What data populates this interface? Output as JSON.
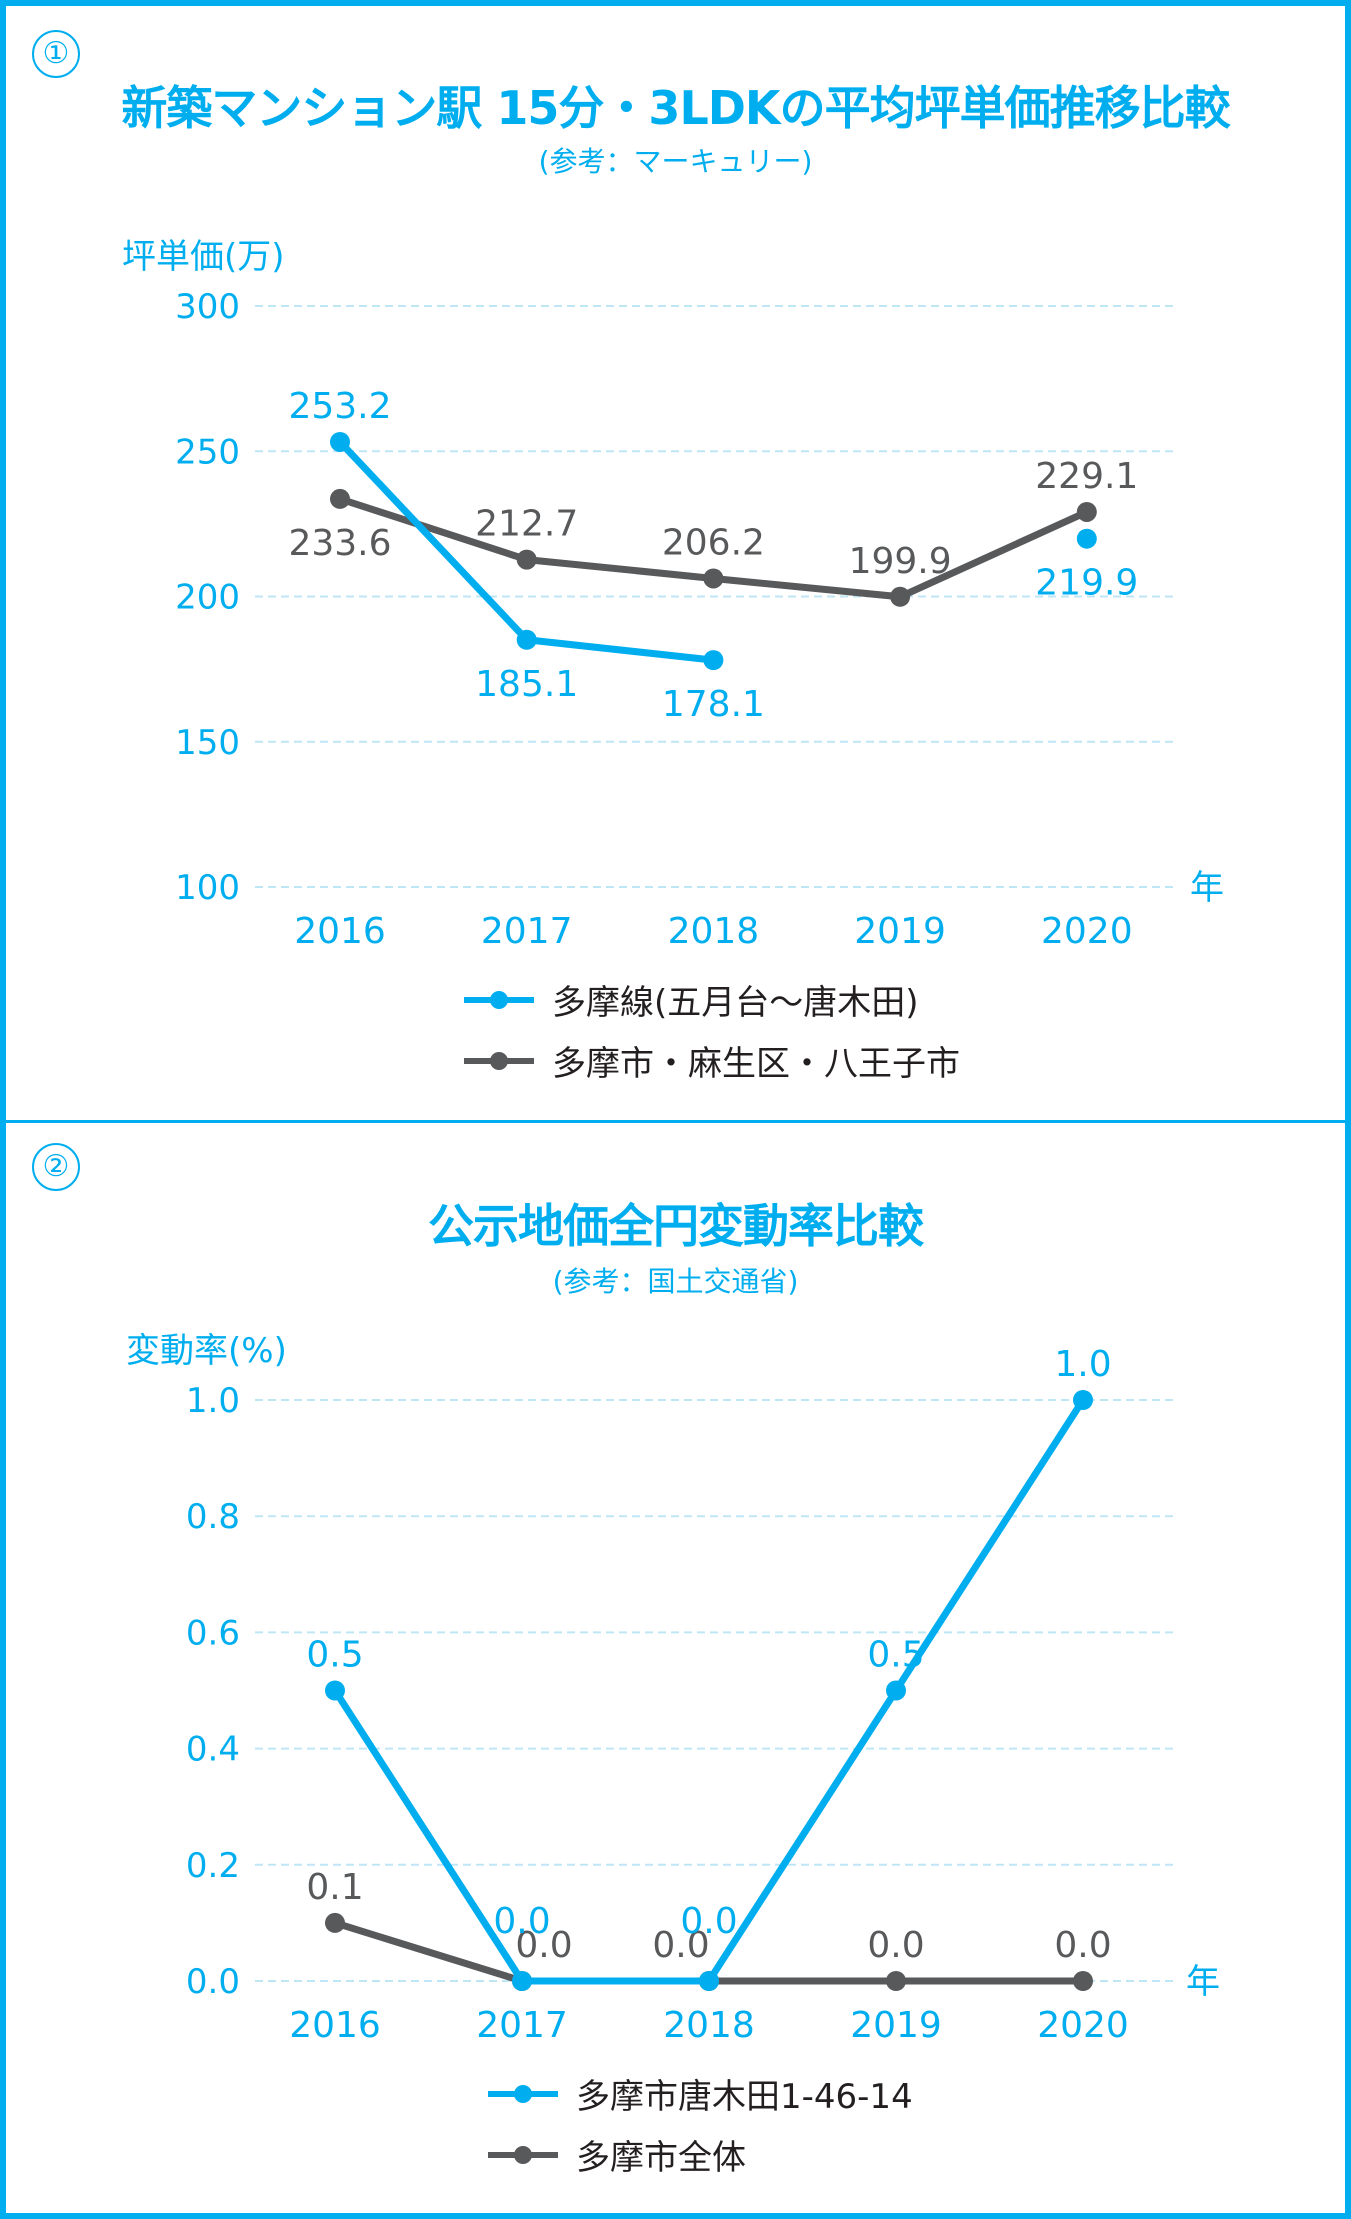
{
  "colors": {
    "blue": "#00AEEF",
    "gray": "#58595B",
    "grid": "#BFE6F5"
  },
  "chart_data": [
    {
      "type": "line",
      "number": "①",
      "title": "新築マンション駅 15分・3LDKの平均坪単価推移比較",
      "subtitle": "(参考：マーキュリー)",
      "ylabel": "坪単価(万)",
      "xlabel": "年",
      "ylim": [
        100,
        300
      ],
      "yticks": [
        "300",
        "250",
        "200",
        "150",
        "100"
      ],
      "categories": [
        "2016",
        "2017",
        "2018",
        "2019",
        "2020"
      ],
      "grid": true,
      "legend_position": "bottom",
      "series": [
        {
          "name": "多摩線(五月台〜唐木田)",
          "color": "#00AEEF",
          "values": [
            253.2,
            185.1,
            178.1,
            null,
            219.9
          ],
          "labels": [
            "253.2",
            "185.1",
            "178.1",
            "",
            "219.9"
          ],
          "label_pos": [
            "above",
            "below",
            "below",
            "",
            "below"
          ],
          "connect": [
            true,
            true,
            false,
            false
          ]
        },
        {
          "name": "多摩市・麻生区・八王子市",
          "color": "#58595B",
          "values": [
            233.6,
            212.7,
            206.2,
            199.9,
            229.1
          ],
          "labels": [
            "233.6",
            "212.7",
            "206.2",
            "199.9",
            "229.1"
          ],
          "label_pos": [
            "below",
            "above",
            "above",
            "above",
            "above"
          ],
          "connect": [
            true,
            true,
            true,
            true
          ]
        }
      ]
    },
    {
      "type": "line",
      "number": "②",
      "title": "公示地価全円変動率比較",
      "subtitle": "(参考：国土交通省)",
      "ylabel": "変動率(%)",
      "xlabel": "年",
      "ylim": [
        0,
        1.0
      ],
      "yticks": [
        "1.0",
        "0.8",
        "0.6",
        "0.4",
        "0.2",
        "0.0"
      ],
      "categories": [
        "2016",
        "2017",
        "2018",
        "2019",
        "2020"
      ],
      "grid": true,
      "legend_position": "bottom",
      "series": [
        {
          "name": "多摩市唐木田1-46-14",
          "color": "#00AEEF",
          "values": [
            0.5,
            0.0,
            0.0,
            0.5,
            1.0
          ],
          "labels": [
            "0.5",
            "0.0",
            "0.0",
            "0.5",
            "1.0"
          ],
          "label_pos": [
            "above",
            "above",
            "above",
            "above",
            "above"
          ],
          "connect": [
            true,
            true,
            true,
            true
          ]
        },
        {
          "name": "多摩市全体",
          "color": "#58595B",
          "values": [
            0.1,
            0.0,
            0.0,
            0.0,
            0.0
          ],
          "labels": [
            "0.1",
            "0.0",
            "0.0",
            "0.0",
            "0.0"
          ],
          "label_pos": [
            "above",
            "above",
            "above",
            "above",
            "above"
          ],
          "connect": [
            true,
            true,
            true,
            true
          ]
        }
      ]
    }
  ]
}
